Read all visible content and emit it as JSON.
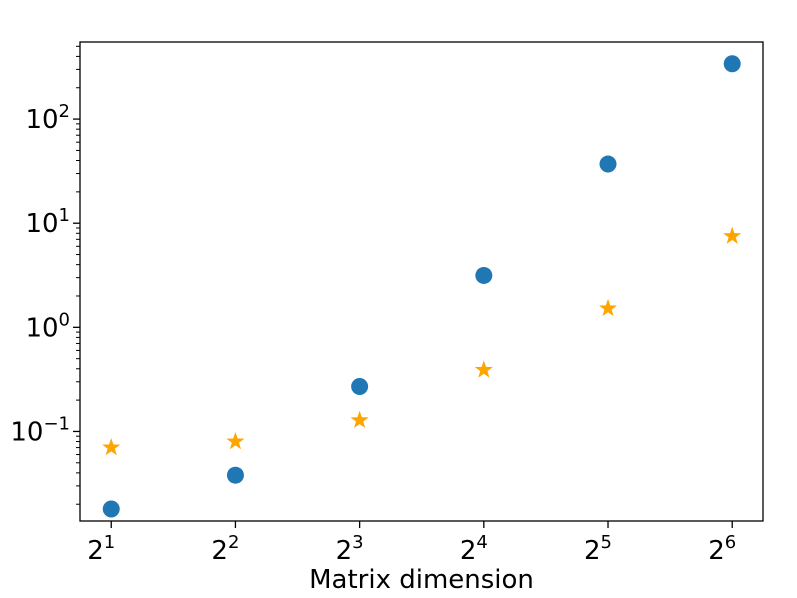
{
  "chart_data": {
    "type": "scatter",
    "title": "",
    "xlabel": "Matrix dimension",
    "ylabel": "",
    "x_scale": "log2",
    "y_scale": "log10",
    "x": [
      2,
      4,
      8,
      16,
      32,
      64
    ],
    "x_ticks": [
      {
        "value": 2,
        "base": "2",
        "exp": "1"
      },
      {
        "value": 4,
        "base": "2",
        "exp": "2"
      },
      {
        "value": 8,
        "base": "2",
        "exp": "3"
      },
      {
        "value": 16,
        "base": "2",
        "exp": "4"
      },
      {
        "value": 32,
        "base": "2",
        "exp": "5"
      },
      {
        "value": 64,
        "base": "2",
        "exp": "6"
      }
    ],
    "y_ticks": [
      {
        "value": 0.1,
        "base": "10",
        "exp": "−1"
      },
      {
        "value": 1,
        "base": "10",
        "exp": "0"
      },
      {
        "value": 10,
        "base": "10",
        "exp": "1"
      },
      {
        "value": 100,
        "base": "10",
        "exp": "2"
      }
    ],
    "xlim": [
      1.68,
      76.0
    ],
    "ylim": [
      0.0138,
      550
    ],
    "grid": false,
    "series": [
      {
        "marker": "circle",
        "color": "#1f77b4",
        "values": [
          0.018,
          0.038,
          0.27,
          3.15,
          37,
          340
        ]
      },
      {
        "marker": "star",
        "color": "#ffa500",
        "values": [
          0.07,
          0.08,
          0.128,
          0.39,
          1.52,
          7.5
        ]
      }
    ]
  }
}
